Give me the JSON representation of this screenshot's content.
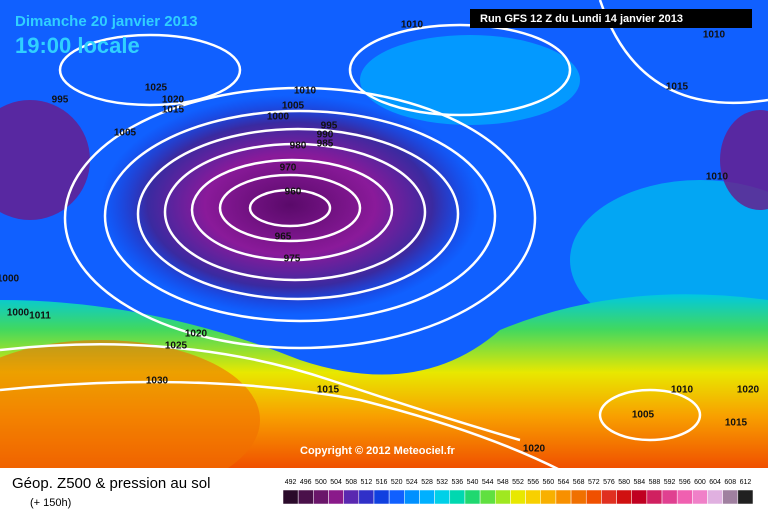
{
  "header": {
    "date": "Dimanche 20 janvier 2013",
    "time": "19:00 locale",
    "run": "Run GFS 12 Z du Lundi 14 janvier 2013"
  },
  "isobars": [
    "1010",
    "1010",
    "1025",
    "995",
    "1020",
    "1015",
    "1010",
    "1005",
    "1000",
    "1005",
    "995",
    "990",
    "985",
    "980",
    "970",
    "960",
    "965",
    "975",
    "1015",
    "1010",
    "1000",
    "1000",
    "1011",
    "1020",
    "1025",
    "1030",
    "1015",
    "1010",
    "1020",
    "1005",
    "1015",
    "1020"
  ],
  "copyright": "Copyright © 2012 Meteociel.fr",
  "footer": {
    "title": "Géop. Z500 & pression au sol",
    "lead": "(+ 150h)"
  },
  "scale": {
    "labels": [
      492,
      496,
      500,
      504,
      508,
      512,
      516,
      520,
      524,
      528,
      532,
      536,
      540,
      544,
      548,
      552,
      556,
      560,
      564,
      568,
      572,
      576,
      580,
      584,
      588,
      592,
      596,
      600,
      604,
      608,
      612
    ],
    "colors": [
      "#2a0a2a",
      "#4a104a",
      "#6a166a",
      "#8a1a8a",
      "#5a28b0",
      "#3030c8",
      "#1040e0",
      "#1060ff",
      "#0090ff",
      "#00b0ff",
      "#00d0e8",
      "#00d8b0",
      "#20d870",
      "#60e040",
      "#a0e820",
      "#e8e800",
      "#f8d000",
      "#f8b000",
      "#f89000",
      "#f07000",
      "#f05000",
      "#e03020",
      "#d01010",
      "#c00020",
      "#d02060",
      "#e04090",
      "#f060b0",
      "#f080c8",
      "#e0b0e0",
      "#a080a0",
      "#202020"
    ]
  }
}
